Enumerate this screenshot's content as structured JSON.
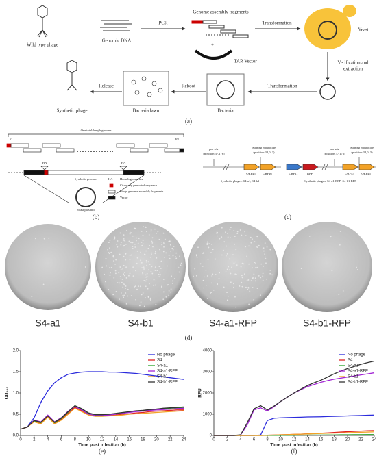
{
  "panel_a": {
    "caption": "(a)",
    "wild_type_phage": "Wild type phage",
    "genomic_dna": "Genomic DNA",
    "pcr": "PCR",
    "genome_assembly_fragments": "Genome assembly fragments",
    "plus": "+",
    "tar_vector": "TAR Vector",
    "transformation_1": "Transformation",
    "yeast": "Yeast",
    "verification": "Verification and",
    "extraction": "extraction",
    "transformation_2": "Transformation",
    "bacteria": "Bacteria",
    "reboot": "Reboot",
    "bacteria_lawn": "Bacteria lawn",
    "release": "Release",
    "synthetic_phage": "Synthetic phage"
  },
  "panel_b": {
    "caption": "(b)",
    "genome": "One total-length genome",
    "f1": "F1",
    "f8": "F8",
    "ha_left": "HA",
    "ha_right": "HA",
    "synthetic_genome": "Synthetic genome",
    "legend": [
      "Homologous arms",
      "Circularly permuted sequence",
      "Phage genome assembly fragments",
      "Vector"
    ],
    "legend_ha": "HA",
    "yeast_plasmid": "Yeast plasmid"
  },
  "panel_c": {
    "caption": "(c)",
    "left": {
      "pac": "pac site",
      "pac_pos": "(position 37,176)",
      "start": "Starting nucleotide",
      "start_pos": "(position 38,013)",
      "orf45": "ORF45",
      "orf46": "ORF46",
      "note": "Synthetic phages: S4-a1, S4-b1"
    },
    "right": {
      "orf11": "ORF11",
      "rfp": "RFP",
      "pac": "pac site",
      "pac_pos": "(position 37,176)",
      "start": "Starting nucleotide",
      "start_pos": "(position 38,013)",
      "orf45": "ORF45",
      "orf46": "ORF46",
      "note": "Synthetic phages: S4-a1-RFP; S4-b1-RFP"
    }
  },
  "panel_d": {
    "caption": "(d)",
    "plates": [
      "S4-a1",
      "S4-b1",
      "S4-a1-RFP",
      "S4-b1-RFP"
    ]
  },
  "chart_data": [
    {
      "type": "line",
      "caption": "(e)",
      "ylabel": "OD₆₀₀",
      "xlabel": "Time post infection (h)",
      "legend": "upper right",
      "x": [
        0,
        1,
        2,
        3,
        4,
        5,
        6,
        7,
        8,
        9,
        10,
        11,
        12,
        13,
        14,
        15,
        16,
        17,
        18,
        19,
        20,
        21,
        22,
        23,
        24
      ],
      "xlim": [
        0,
        24
      ],
      "xticks": [
        0,
        2,
        4,
        6,
        8,
        10,
        12,
        14,
        16,
        18,
        20,
        22,
        24
      ],
      "ylim": [
        0,
        2
      ],
      "yticks": [
        {
          "value": 0,
          "label": "0.0"
        },
        {
          "value": 0.5,
          "label": "0.5"
        },
        {
          "value": 1,
          "label": "1.0"
        },
        {
          "value": 1.5,
          "label": "1.5"
        },
        {
          "value": 2,
          "label": "2.0"
        }
      ],
      "series": [
        {
          "name": "No phage",
          "color": "#2b2bdc",
          "values": [
            0.15,
            0.2,
            0.42,
            0.78,
            1.05,
            1.24,
            1.36,
            1.44,
            1.47,
            1.49,
            1.5,
            1.5,
            1.5,
            1.49,
            1.49,
            1.48,
            1.47,
            1.46,
            1.44,
            1.42,
            1.4,
            1.38,
            1.36,
            1.34,
            1.32
          ]
        },
        {
          "name": "S4",
          "color": "#e02424",
          "values": [
            0.15,
            0.2,
            0.33,
            0.28,
            0.45,
            0.28,
            0.38,
            0.52,
            0.66,
            0.58,
            0.5,
            0.46,
            0.46,
            0.47,
            0.48,
            0.5,
            0.51,
            0.53,
            0.54,
            0.56,
            0.57,
            0.58,
            0.59,
            0.6,
            0.6
          ]
        },
        {
          "name": "S4-a1",
          "color": "#25a025",
          "values": [
            0.15,
            0.2,
            0.34,
            0.3,
            0.47,
            0.3,
            0.4,
            0.55,
            0.7,
            0.62,
            0.52,
            0.48,
            0.48,
            0.49,
            0.51,
            0.53,
            0.55,
            0.57,
            0.58,
            0.6,
            0.62,
            0.63,
            0.64,
            0.65,
            0.66
          ]
        },
        {
          "name": "S4-a1-RFP",
          "color": "#a326d4",
          "values": [
            0.15,
            0.2,
            0.36,
            0.32,
            0.48,
            0.32,
            0.42,
            0.57,
            0.68,
            0.6,
            0.5,
            0.47,
            0.47,
            0.48,
            0.5,
            0.52,
            0.54,
            0.56,
            0.57,
            0.59,
            0.6,
            0.61,
            0.62,
            0.63,
            0.64
          ]
        },
        {
          "name": "S4-b1",
          "color": "#f2a227",
          "values": [
            0.15,
            0.2,
            0.32,
            0.27,
            0.43,
            0.27,
            0.36,
            0.5,
            0.64,
            0.56,
            0.48,
            0.45,
            0.45,
            0.46,
            0.47,
            0.48,
            0.5,
            0.51,
            0.52,
            0.53,
            0.54,
            0.55,
            0.56,
            0.57,
            0.58
          ]
        },
        {
          "name": "S4-b1-RFP",
          "color": "#333333",
          "values": [
            0.15,
            0.2,
            0.35,
            0.31,
            0.46,
            0.31,
            0.41,
            0.56,
            0.7,
            0.63,
            0.53,
            0.49,
            0.49,
            0.5,
            0.52,
            0.54,
            0.56,
            0.58,
            0.59,
            0.61,
            0.62,
            0.64,
            0.65,
            0.66,
            0.67
          ]
        }
      ]
    },
    {
      "type": "line",
      "caption": "(f)",
      "ylabel": "RFU",
      "xlabel": "Time post infection (h)",
      "legend": "upper right",
      "x": [
        0,
        1,
        2,
        3,
        4,
        5,
        6,
        7,
        8,
        9,
        10,
        11,
        12,
        13,
        14,
        15,
        16,
        17,
        18,
        19,
        20,
        21,
        22,
        23,
        24
      ],
      "xlim": [
        0,
        24
      ],
      "xticks": [
        0,
        2,
        4,
        6,
        8,
        10,
        12,
        14,
        16,
        18,
        20,
        22,
        24
      ],
      "ylim": [
        0,
        4000
      ],
      "yticks": [
        0,
        1000,
        2000,
        3000,
        4000
      ],
      "series": [
        {
          "name": "No phage",
          "color": "#2b2bdc",
          "values": [
            0,
            0,
            0,
            0,
            0,
            0,
            0,
            20,
            700,
            810,
            830,
            840,
            850,
            860,
            870,
            875,
            880,
            890,
            900,
            910,
            920,
            930,
            940,
            950,
            960
          ]
        },
        {
          "name": "S4",
          "color": "#e02424",
          "values": [
            0,
            0,
            0,
            0,
            0,
            0,
            0,
            0,
            10,
            20,
            30,
            40,
            50,
            60,
            75,
            90,
            105,
            120,
            140,
            160,
            175,
            190,
            205,
            220,
            230
          ]
        },
        {
          "name": "S4-a1",
          "color": "#25a025",
          "values": [
            0,
            0,
            0,
            0,
            0,
            0,
            0,
            0,
            0,
            5,
            5,
            10,
            10,
            15,
            15,
            20,
            20,
            25,
            25,
            30,
            30,
            35,
            35,
            40,
            40
          ]
        },
        {
          "name": "S4-a1-RFP",
          "color": "#a326d4",
          "values": [
            0,
            0,
            0,
            0,
            20,
            500,
            1200,
            1300,
            1150,
            1350,
            1600,
            1800,
            2000,
            2150,
            2300,
            2400,
            2500,
            2580,
            2650,
            2700,
            2750,
            2800,
            2850,
            2900,
            2950
          ]
        },
        {
          "name": "S4-b1",
          "color": "#f2a227",
          "values": [
            0,
            0,
            0,
            0,
            0,
            0,
            0,
            0,
            10,
            20,
            30,
            40,
            50,
            60,
            70,
            80,
            90,
            100,
            110,
            120,
            130,
            140,
            150,
            160,
            170
          ]
        },
        {
          "name": "S4-b1-RFP",
          "color": "#333333",
          "values": [
            0,
            0,
            0,
            0,
            30,
            600,
            1250,
            1400,
            1200,
            1380,
            1600,
            1800,
            2000,
            2180,
            2350,
            2480,
            2600,
            2750,
            2900,
            3030,
            3150,
            3250,
            3350,
            3430,
            3500
          ]
        }
      ]
    }
  ]
}
